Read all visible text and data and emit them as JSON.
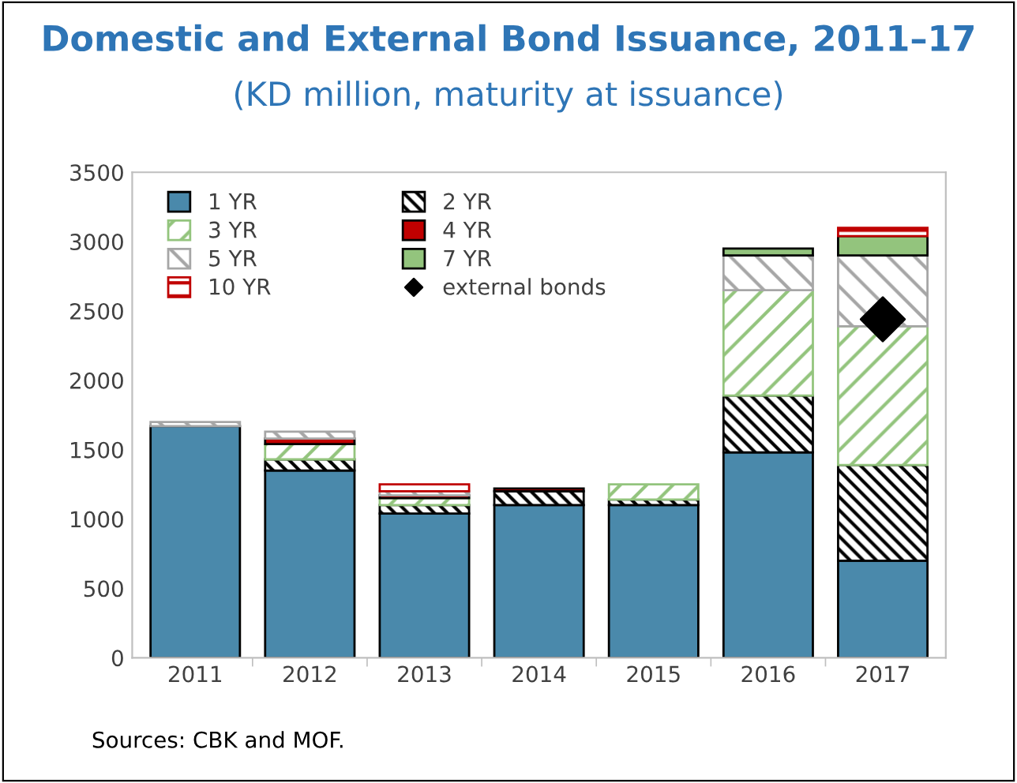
{
  "chart_data": {
    "type": "bar",
    "stacked": true,
    "title": "Domestic and External Bond Issuance, 2011–17",
    "subtitle": "(KD million, maturity at issuance)",
    "categories": [
      "2011",
      "2012",
      "2013",
      "2014",
      "2015",
      "2016",
      "2017"
    ],
    "series": [
      {
        "name": "1 YR",
        "color": "#4a89ab",
        "values": [
          1670,
          1350,
          1040,
          1100,
          1100,
          1480,
          700
        ]
      },
      {
        "name": "2 YR",
        "color": "#000000",
        "values": [
          null,
          80,
          60,
          100,
          40,
          410,
          690
        ]
      },
      {
        "name": "3 YR",
        "color": "#93c47d",
        "values": [
          null,
          110,
          50,
          null,
          110,
          760,
          1000
        ]
      },
      {
        "name": "4 YR",
        "color": "#c00000",
        "values": [
          null,
          40,
          20,
          20,
          null,
          null,
          null
        ]
      },
      {
        "name": "5 YR",
        "color": "#a6a6a6",
        "values": [
          30,
          50,
          30,
          null,
          null,
          250,
          510
        ]
      },
      {
        "name": "7 YR",
        "color": "#93c47d",
        "values": [
          null,
          null,
          null,
          null,
          null,
          50,
          140
        ]
      },
      {
        "name": "10 YR",
        "color": "#c00000",
        "values": [
          null,
          null,
          50,
          null,
          null,
          null,
          60
        ]
      },
      {
        "name": "external bonds",
        "type": "scatter",
        "color": "#000000",
        "values": [
          null,
          null,
          null,
          null,
          null,
          null,
          2440
        ]
      }
    ],
    "ylim": [
      0,
      3500
    ],
    "yticks": [
      0,
      500,
      1000,
      1500,
      2000,
      2500,
      3000,
      3500
    ],
    "legend": "top left",
    "grid": false,
    "marker": "diamond",
    "annotations": [
      "Sources: CBK and MOF."
    ]
  }
}
